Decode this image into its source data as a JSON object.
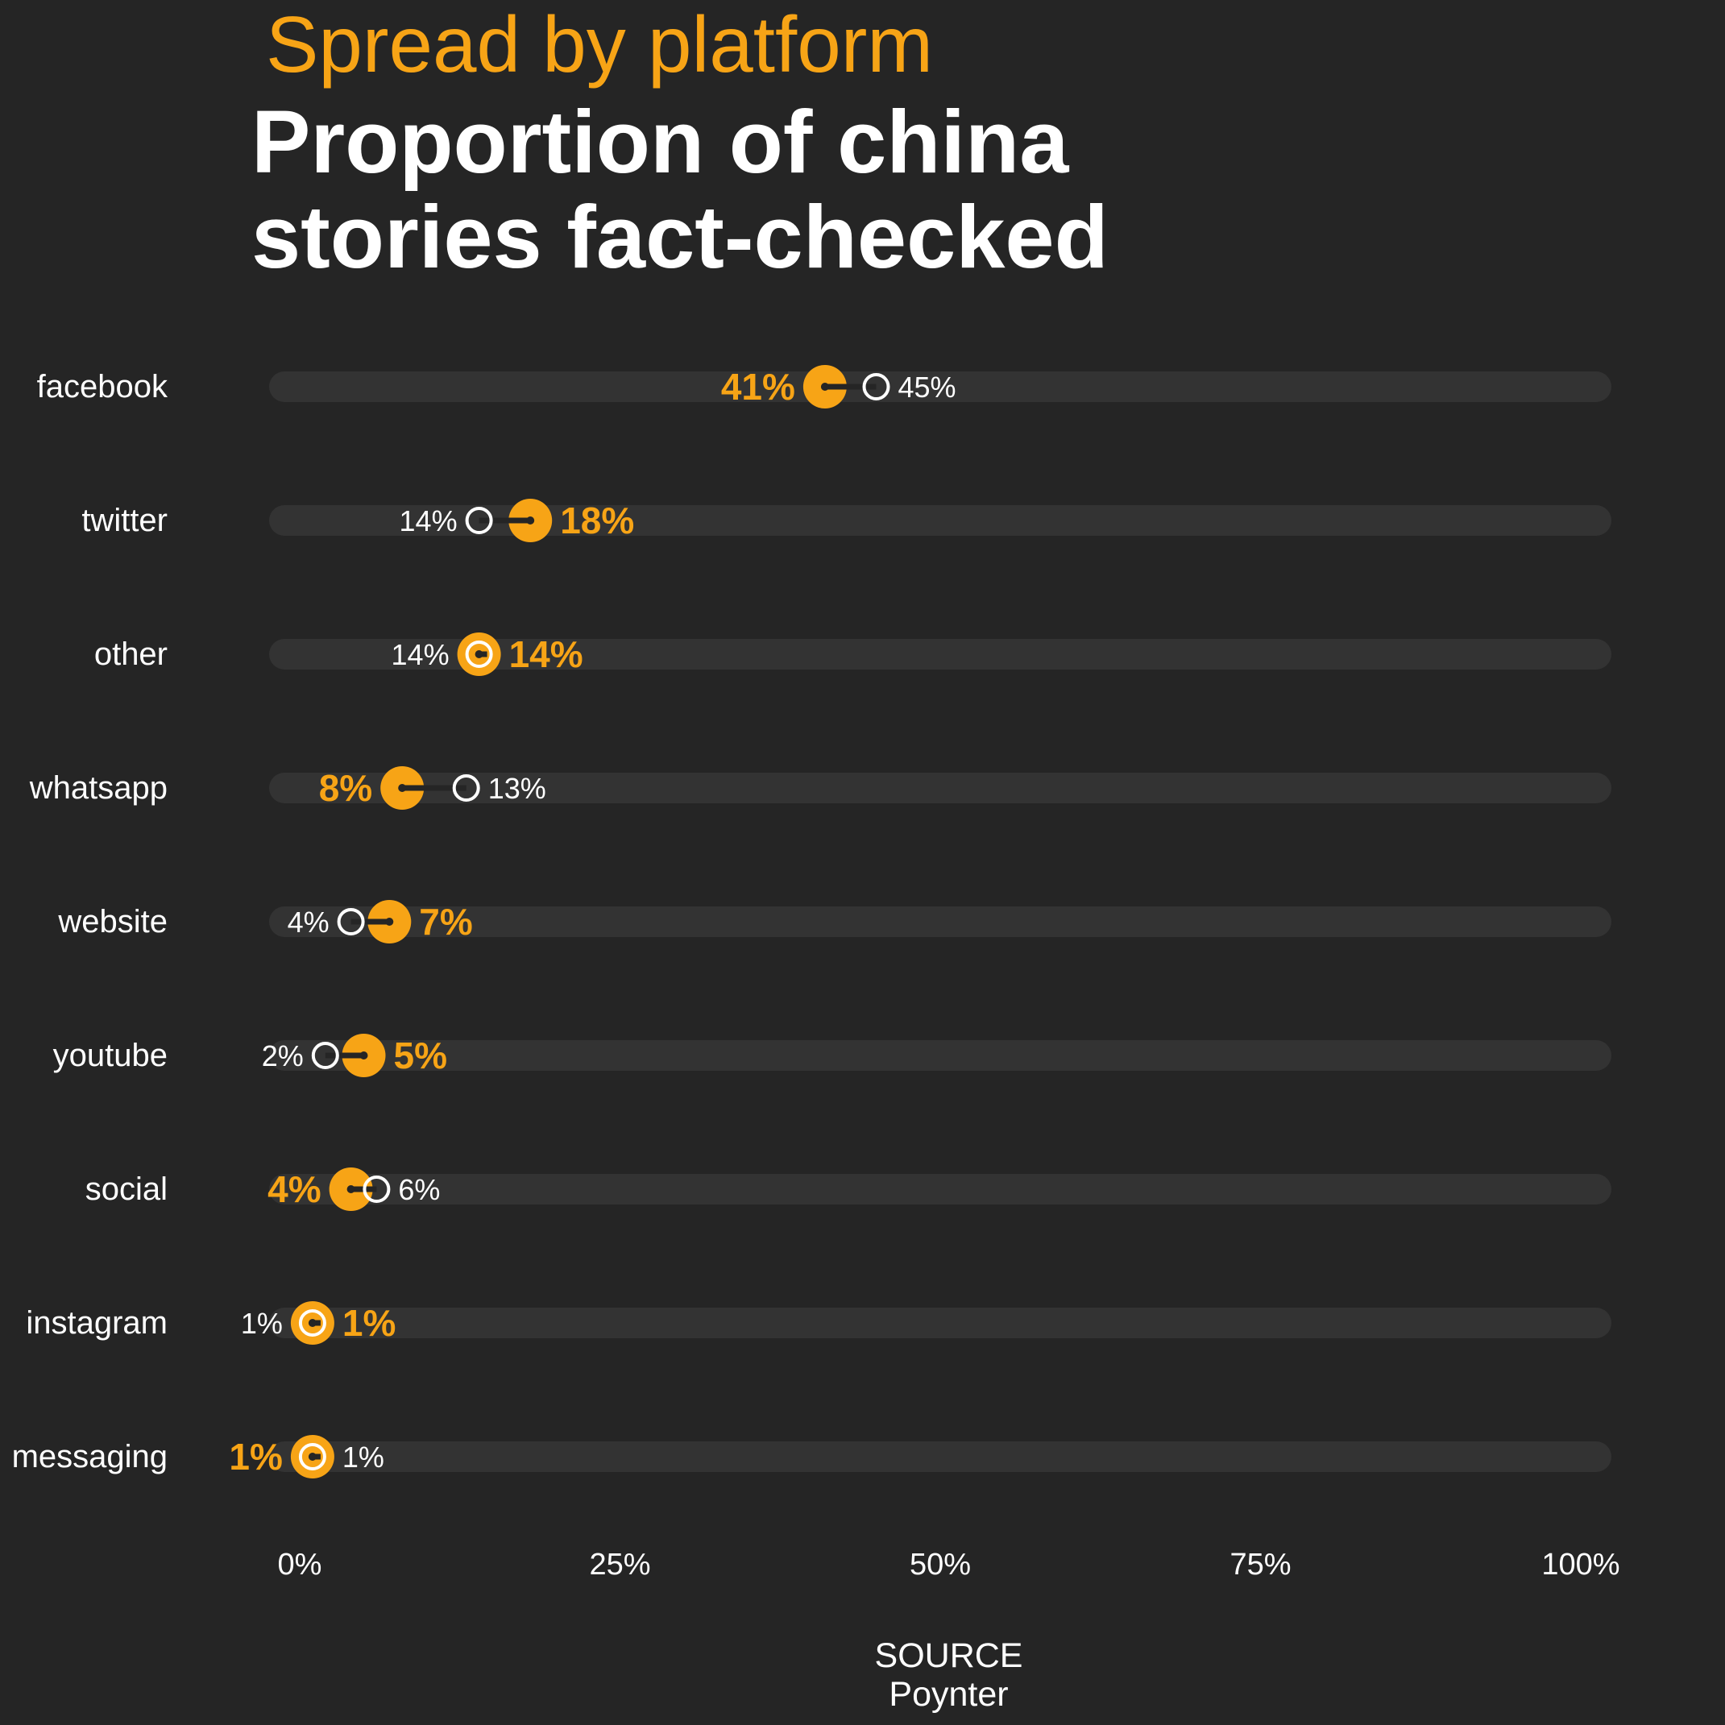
{
  "header": {
    "subtitle": "Spread by platform",
    "title_line1": "Proportion of china",
    "title_line2": "stories fact-checked"
  },
  "footer": {
    "source_label": "SOURCE",
    "source_value": "Poynter"
  },
  "colors": {
    "background": "#252525",
    "track": "#333333",
    "accent": "#f7a416",
    "text": "#ffffff",
    "connector": "#252525"
  },
  "chart_data": {
    "type": "dot-plot",
    "xlim": [
      0,
      100
    ],
    "x_ticks": [
      "0%",
      "25%",
      "50%",
      "75%",
      "100%"
    ],
    "x_tick_values": [
      0,
      25,
      50,
      75,
      100
    ],
    "grid": false,
    "series": [
      {
        "style": "filled-orange",
        "values": [
          41,
          18,
          14,
          8,
          7,
          5,
          4,
          1,
          1
        ],
        "labels": [
          "41%",
          "18%",
          "14%",
          "8%",
          "7%",
          "5%",
          "4%",
          "1%",
          "1%"
        ]
      },
      {
        "style": "open-white",
        "values": [
          45,
          14,
          14,
          13,
          4,
          2,
          6,
          1,
          1
        ],
        "labels": [
          "45%",
          "14%",
          "14%",
          "13%",
          "4%",
          "2%",
          "6%",
          "1%",
          "1%"
        ]
      }
    ],
    "categories": [
      "facebook",
      "twitter",
      "other",
      "whatsapp",
      "website",
      "youtube",
      "social",
      "instagram",
      "messaging"
    ]
  }
}
